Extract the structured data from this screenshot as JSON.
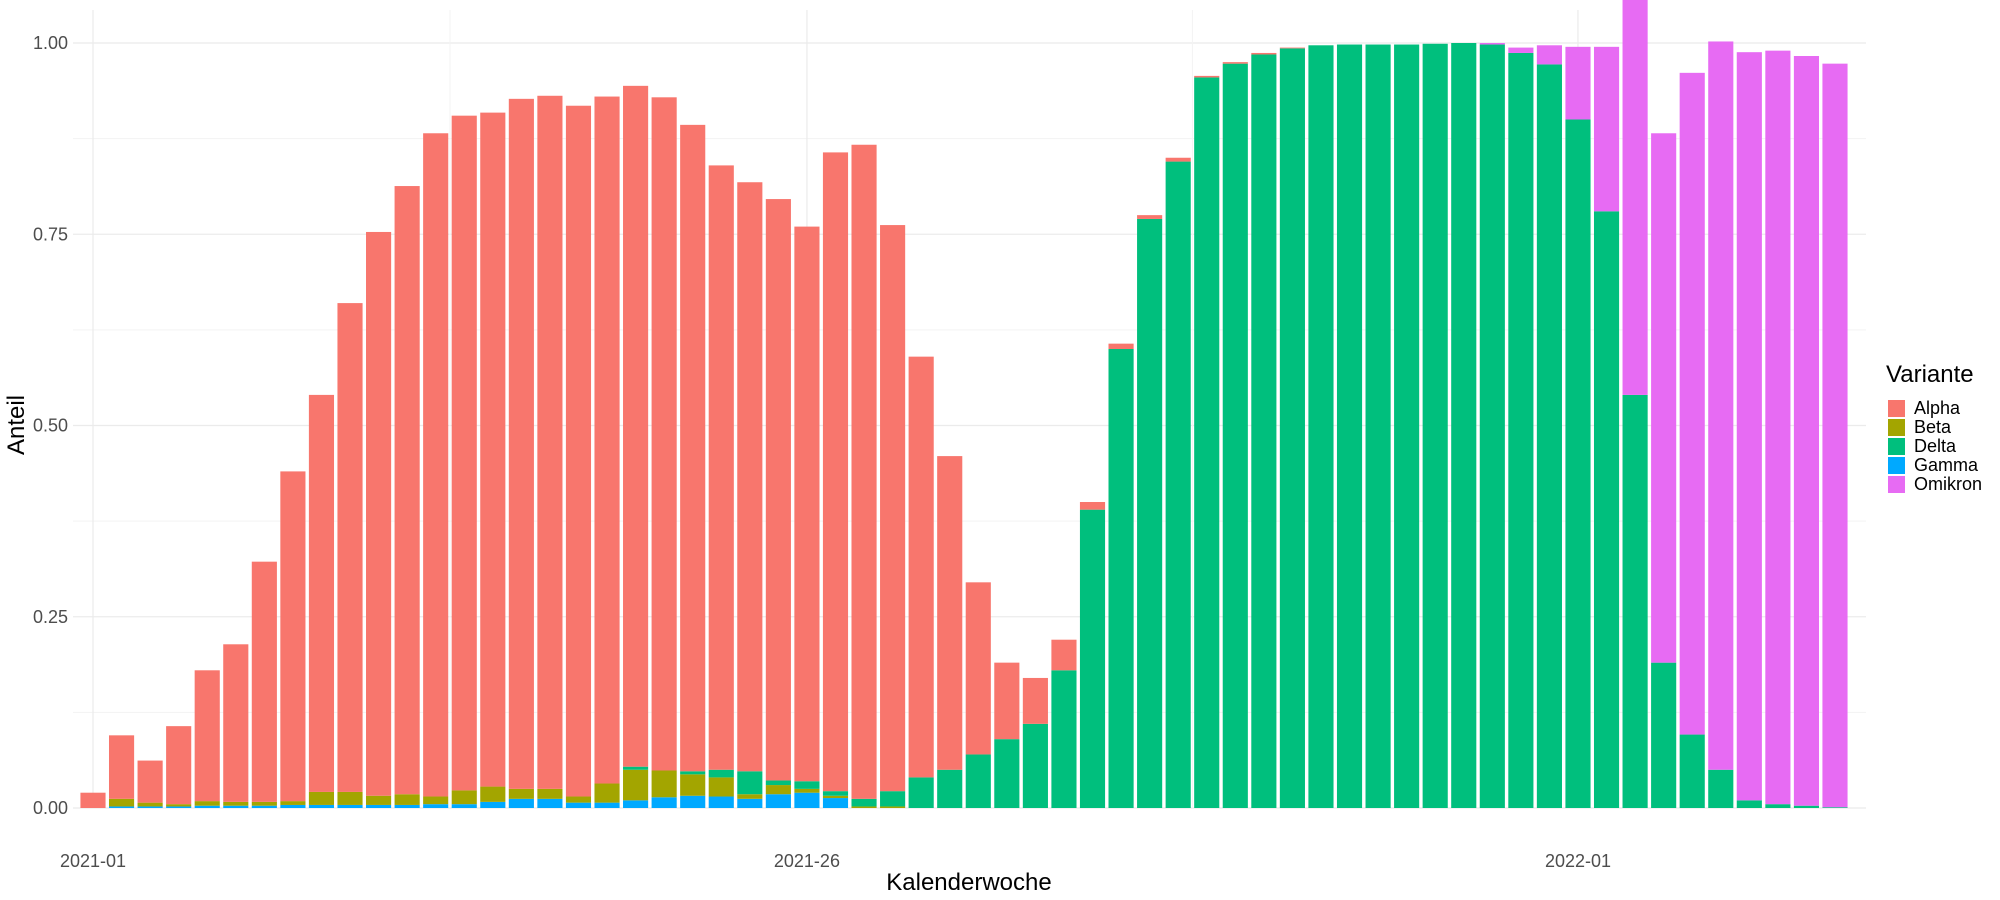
{
  "chart_data": {
    "type": "bar",
    "stacked": true,
    "xlabel": "Kalenderwoche",
    "ylabel": "Anteil",
    "ylim": [
      0,
      1
    ],
    "y_ticks": [
      "0.00",
      "0.25",
      "0.50",
      "0.75",
      "1.00"
    ],
    "x_tick_labels": [
      {
        "label": "2021-01",
        "category": "2021-01"
      },
      {
        "label": "2021-26",
        "category": "2021-26"
      },
      {
        "label": "2022-01",
        "category": "2022-01"
      }
    ],
    "grid": true,
    "legend": {
      "title": "Variante",
      "position": "right"
    },
    "categories": [
      "2021-01",
      "2021-02",
      "2021-03",
      "2021-04",
      "2021-05",
      "2021-06",
      "2021-07",
      "2021-08",
      "2021-09",
      "2021-10",
      "2021-11",
      "2021-12",
      "2021-13",
      "2021-14",
      "2021-15",
      "2021-16",
      "2021-17",
      "2021-18",
      "2021-19",
      "2021-20",
      "2021-21",
      "2021-22",
      "2021-23",
      "2021-24",
      "2021-25",
      "2021-26",
      "2021-27",
      "2021-28",
      "2021-29",
      "2021-30",
      "2021-31",
      "2021-32",
      "2021-33",
      "2021-34",
      "2021-35",
      "2021-36",
      "2021-37",
      "2021-38",
      "2021-39",
      "2021-40",
      "2021-41",
      "2021-42",
      "2021-43",
      "2021-44",
      "2021-45",
      "2021-46",
      "2021-47",
      "2021-48",
      "2021-49",
      "2021-50",
      "2021-51",
      "2021-52",
      "2022-01",
      "2022-02",
      "2022-03",
      "2022-04",
      "2022-05",
      "2022-06",
      "2022-07",
      "2022-08",
      "2022-09",
      "2022-10"
    ],
    "series": [
      {
        "name": "Gamma",
        "color": "#00A9FF",
        "values": [
          0,
          0.002,
          0.002,
          0.002,
          0.003,
          0.003,
          0.003,
          0.004,
          0.004,
          0.004,
          0.004,
          0.004,
          0.005,
          0.005,
          0.008,
          0.012,
          0.012,
          0.007,
          0.007,
          0.01,
          0.014,
          0.016,
          0.015,
          0.012,
          0.018,
          0.02,
          0.013,
          0,
          0,
          0,
          0,
          0,
          0,
          0,
          0,
          0,
          0,
          0,
          0,
          0,
          0,
          0,
          0,
          0,
          0,
          0,
          0,
          0,
          0,
          0,
          0,
          0,
          0,
          0,
          0,
          0,
          0,
          0,
          0,
          0,
          0,
          0
        ]
      },
      {
        "name": "Beta",
        "color": "#A3A500",
        "values": [
          0,
          0.01,
          0.005,
          0.003,
          0.006,
          0.005,
          0.005,
          0.005,
          0.017,
          0.017,
          0.012,
          0.014,
          0.01,
          0.018,
          0.02,
          0.013,
          0.013,
          0.008,
          0.025,
          0.04,
          0.035,
          0.028,
          0.025,
          0.006,
          0.012,
          0.005,
          0.003,
          0.002,
          0.002,
          0,
          0,
          0,
          0,
          0,
          0,
          0,
          0,
          0,
          0,
          0,
          0,
          0,
          0,
          0,
          0,
          0,
          0,
          0,
          0,
          0,
          0,
          0,
          0,
          0,
          0,
          0,
          0,
          0,
          0,
          0,
          0,
          0
        ]
      },
      {
        "name": "Delta",
        "color": "#00BF7D",
        "values": [
          0,
          0,
          0,
          0,
          0,
          0,
          0,
          0,
          0,
          0,
          0,
          0,
          0,
          0,
          0,
          0,
          0,
          0,
          0,
          0.004,
          0,
          0.004,
          0.01,
          0.03,
          0.006,
          0.01,
          0.006,
          0.01,
          0.02,
          0.04,
          0.05,
          0.07,
          0.09,
          0.11,
          0.18,
          0.39,
          0.6,
          0.77,
          0.845,
          0.955,
          0.973,
          0.985,
          0.993,
          0.997,
          0.998,
          0.998,
          0.998,
          0.999,
          1,
          0.998,
          0.987,
          0.972,
          0.9,
          0.78,
          0.54,
          0.19,
          0.096,
          0.05,
          0.01,
          0.005,
          0.003,
          0.001
        ]
      },
      {
        "name": "Alpha",
        "color": "#F8766D",
        "values": [
          0.02,
          0.083,
          0.055,
          0.102,
          0.171,
          0.206,
          0.314,
          0.431,
          0.519,
          0.639,
          0.737,
          0.795,
          0.867,
          0.882,
          0.881,
          0.902,
          0.906,
          0.903,
          0.898,
          0.89,
          0.88,
          0.845,
          0.79,
          0.77,
          0.76,
          0.725,
          0.835,
          0.855,
          0.74,
          0.55,
          0.41,
          0.225,
          0.1,
          0.06,
          0.04,
          0.01,
          0.007,
          0.005,
          0.005,
          0.002,
          0.002,
          0.002,
          0.001,
          0,
          0,
          0,
          0,
          0,
          0,
          0,
          0,
          0,
          0,
          0,
          0,
          0,
          0,
          0,
          0,
          0,
          0,
          0
        ]
      },
      {
        "name": "Omikron",
        "color": "#E76BF3",
        "values": [
          0,
          0,
          0,
          0,
          0,
          0,
          0,
          0,
          0,
          0,
          0,
          0,
          0,
          0,
          0,
          0,
          0,
          0,
          0,
          0,
          0,
          0,
          0,
          0,
          0,
          0,
          0,
          0,
          0,
          0,
          0,
          0,
          0,
          0,
          0,
          0,
          0,
          0,
          0,
          0,
          0,
          0,
          0,
          0,
          0,
          0,
          0,
          0,
          0,
          0.002,
          0.007,
          0.025,
          0.095,
          0.215,
          0.532,
          0.692,
          0.865,
          0.952,
          0.978,
          0.985,
          0.98,
          0.972
        ]
      }
    ],
    "legend_order": [
      "Alpha",
      "Beta",
      "Delta",
      "Gamma",
      "Omikron"
    ]
  }
}
